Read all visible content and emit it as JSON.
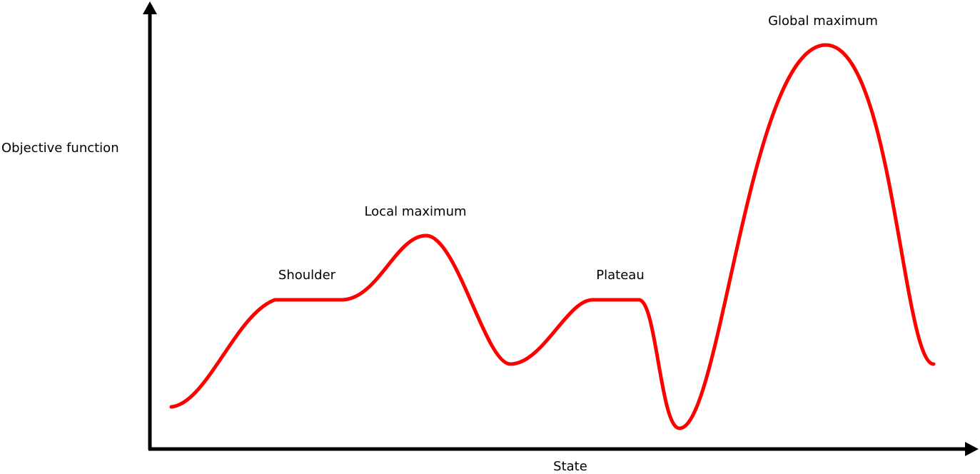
{
  "diagram": {
    "y_axis_label": "Objective function",
    "x_axis_label": "State",
    "annotations": {
      "shoulder": "Shoulder",
      "local_maximum": "Local maximum",
      "plateau": "Plateau",
      "global_maximum": "Global maximum"
    },
    "colors": {
      "curve": "#ff0000",
      "axes": "#000000",
      "text": "#000000"
    }
  }
}
